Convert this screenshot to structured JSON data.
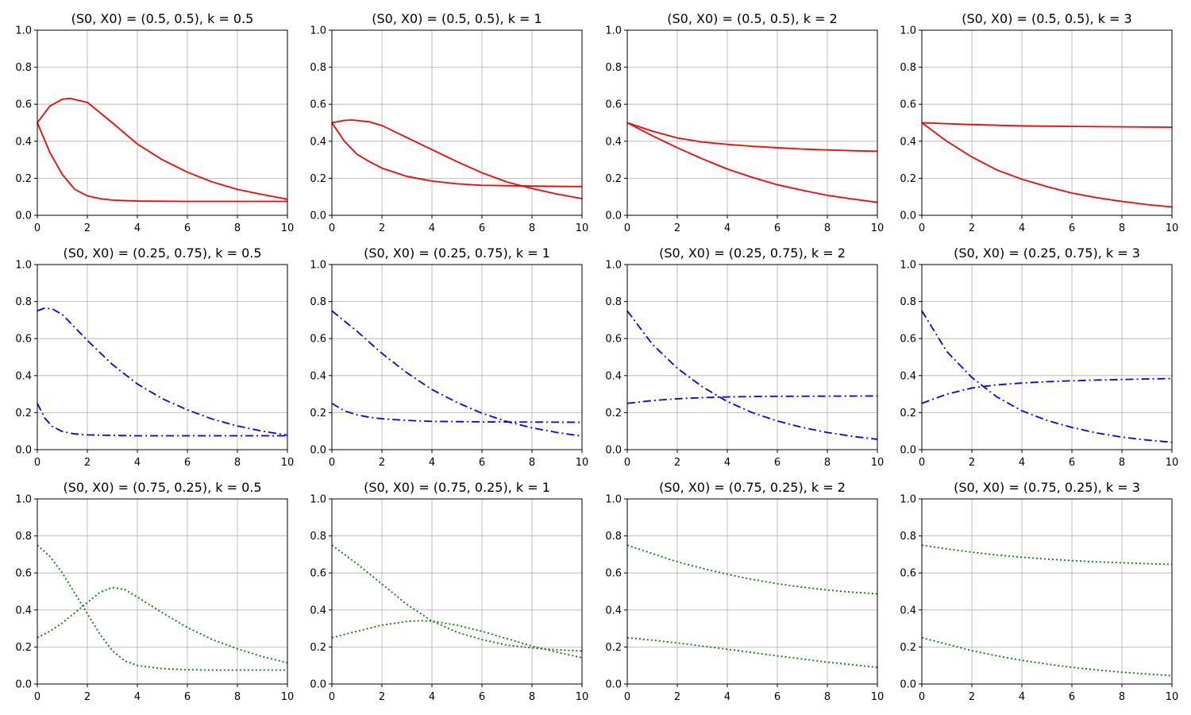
{
  "figure": {
    "layout": {
      "rows": 3,
      "cols": 4
    },
    "series_styles": {
      "solid": {
        "color": "#ff0000",
        "dash": ""
      },
      "dashdot": {
        "color": "#0000ff",
        "dash": "10,4,2,4"
      },
      "dotted": {
        "color": "#008000",
        "dash": "2,3"
      }
    }
  },
  "chart_data": [
    {
      "type": "line",
      "title": "(S0, X0) = (0.5, 0.5), k = 0.5",
      "style": "solid",
      "xlim": [
        0,
        10
      ],
      "ylim": [
        0,
        1
      ],
      "grid": true,
      "xticks": [
        0,
        2,
        4,
        6,
        8,
        10
      ],
      "yticks": [
        0.0,
        0.2,
        0.4,
        0.6,
        0.8,
        1.0
      ],
      "series": [
        {
          "x": [
            0,
            0.5,
            1,
            1.3,
            2,
            3,
            4,
            5,
            6,
            7,
            8,
            9,
            10
          ],
          "y": [
            0.5,
            0.59,
            0.627,
            0.632,
            0.61,
            0.5,
            0.385,
            0.3,
            0.233,
            0.18,
            0.14,
            0.112,
            0.087
          ]
        },
        {
          "x": [
            0,
            0.5,
            1,
            1.5,
            2,
            2.5,
            3,
            4,
            6,
            8,
            10
          ],
          "y": [
            0.5,
            0.34,
            0.22,
            0.14,
            0.105,
            0.09,
            0.082,
            0.077,
            0.075,
            0.075,
            0.075
          ]
        }
      ]
    },
    {
      "type": "line",
      "title": "(S0, X0) = (0.5, 0.5), k = 1",
      "style": "solid",
      "xlim": [
        0,
        10
      ],
      "ylim": [
        0,
        1
      ],
      "grid": true,
      "xticks": [
        0,
        2,
        4,
        6,
        8,
        10
      ],
      "yticks": [
        0.0,
        0.2,
        0.4,
        0.6,
        0.8,
        1.0
      ],
      "series": [
        {
          "x": [
            0,
            0.5,
            0.8,
            1.5,
            2,
            3,
            4,
            5,
            6,
            7,
            8,
            9,
            10
          ],
          "y": [
            0.5,
            0.513,
            0.515,
            0.505,
            0.485,
            0.42,
            0.355,
            0.29,
            0.23,
            0.18,
            0.145,
            0.115,
            0.09
          ]
        },
        {
          "x": [
            0,
            0.5,
            1,
            1.5,
            2,
            3,
            4,
            5,
            6,
            8,
            10
          ],
          "y": [
            0.5,
            0.4,
            0.33,
            0.29,
            0.255,
            0.21,
            0.185,
            0.17,
            0.162,
            0.158,
            0.155
          ]
        }
      ]
    },
    {
      "type": "line",
      "title": "(S0, X0) = (0.5, 0.5), k = 2",
      "style": "solid",
      "xlim": [
        0,
        10
      ],
      "ylim": [
        0,
        1
      ],
      "grid": true,
      "xticks": [
        0,
        2,
        4,
        6,
        8,
        10
      ],
      "yticks": [
        0.0,
        0.2,
        0.4,
        0.6,
        0.8,
        1.0
      ],
      "series": [
        {
          "x": [
            0,
            1,
            2,
            3,
            4,
            5,
            6,
            7,
            8,
            9,
            10
          ],
          "y": [
            0.5,
            0.455,
            0.418,
            0.396,
            0.383,
            0.373,
            0.365,
            0.358,
            0.353,
            0.349,
            0.346
          ]
        },
        {
          "x": [
            0,
            1,
            2,
            3,
            4,
            5,
            6,
            7,
            8,
            9,
            10
          ],
          "y": [
            0.5,
            0.43,
            0.365,
            0.305,
            0.25,
            0.205,
            0.165,
            0.135,
            0.108,
            0.088,
            0.07
          ]
        }
      ]
    },
    {
      "type": "line",
      "title": "(S0, X0) = (0.5, 0.5), k = 3",
      "style": "solid",
      "xlim": [
        0,
        10
      ],
      "ylim": [
        0,
        1
      ],
      "grid": true,
      "xticks": [
        0,
        2,
        4,
        6,
        8,
        10
      ],
      "yticks": [
        0.0,
        0.2,
        0.4,
        0.6,
        0.8,
        1.0
      ],
      "series": [
        {
          "x": [
            0,
            2,
            4,
            6,
            8,
            10
          ],
          "y": [
            0.5,
            0.49,
            0.483,
            0.48,
            0.478,
            0.476
          ]
        },
        {
          "x": [
            0,
            1,
            2,
            3,
            4,
            5,
            6,
            7,
            8,
            9,
            10
          ],
          "y": [
            0.5,
            0.4,
            0.315,
            0.245,
            0.195,
            0.155,
            0.12,
            0.095,
            0.075,
            0.058,
            0.045
          ]
        }
      ]
    },
    {
      "type": "line",
      "title": "(S0, X0) = (0.25, 0.75), k = 0.5",
      "style": "dashdot",
      "xlim": [
        0,
        10
      ],
      "ylim": [
        0,
        1
      ],
      "grid": true,
      "xticks": [
        0,
        2,
        4,
        6,
        8,
        10
      ],
      "yticks": [
        0.0,
        0.2,
        0.4,
        0.6,
        0.8,
        1.0
      ],
      "series": [
        {
          "x": [
            0,
            0.3,
            0.6,
            1,
            1.5,
            2,
            3,
            4,
            5,
            6,
            7,
            8,
            9,
            10
          ],
          "y": [
            0.75,
            0.765,
            0.76,
            0.73,
            0.66,
            0.59,
            0.46,
            0.355,
            0.275,
            0.215,
            0.165,
            0.128,
            0.1,
            0.078
          ]
        },
        {
          "x": [
            0,
            0.3,
            0.6,
            1,
            1.5,
            2,
            3,
            4,
            6,
            8,
            10
          ],
          "y": [
            0.25,
            0.17,
            0.125,
            0.098,
            0.085,
            0.08,
            0.077,
            0.075,
            0.075,
            0.075,
            0.075
          ]
        }
      ]
    },
    {
      "type": "line",
      "title": "(S0, X0) = (0.25, 0.75), k = 1",
      "style": "dashdot",
      "xlim": [
        0,
        10
      ],
      "ylim": [
        0,
        1
      ],
      "grid": true,
      "xticks": [
        0,
        2,
        4,
        6,
        8,
        10
      ],
      "yticks": [
        0.0,
        0.2,
        0.4,
        0.6,
        0.8,
        1.0
      ],
      "series": [
        {
          "x": [
            0,
            1,
            2,
            3,
            4,
            5,
            6,
            7,
            8,
            9,
            10
          ],
          "y": [
            0.75,
            0.64,
            0.52,
            0.415,
            0.325,
            0.255,
            0.197,
            0.152,
            0.118,
            0.093,
            0.073
          ]
        },
        {
          "x": [
            0,
            0.5,
            1,
            1.5,
            2,
            3,
            4,
            6,
            8,
            10
          ],
          "y": [
            0.25,
            0.21,
            0.188,
            0.175,
            0.167,
            0.158,
            0.153,
            0.15,
            0.149,
            0.148
          ]
        }
      ]
    },
    {
      "type": "line",
      "title": "(S0, X0) = (0.25, 0.75), k = 2",
      "style": "dashdot",
      "xlim": [
        0,
        10
      ],
      "ylim": [
        0,
        1
      ],
      "grid": true,
      "xticks": [
        0,
        2,
        4,
        6,
        8,
        10
      ],
      "yticks": [
        0.0,
        0.2,
        0.4,
        0.6,
        0.8,
        1.0
      ],
      "series": [
        {
          "x": [
            0,
            1,
            2,
            3,
            4,
            5,
            6,
            7,
            8,
            9,
            10
          ],
          "y": [
            0.75,
            0.57,
            0.44,
            0.34,
            0.26,
            0.2,
            0.155,
            0.12,
            0.093,
            0.072,
            0.056
          ]
        },
        {
          "x": [
            0,
            1,
            2,
            3,
            4,
            5,
            6,
            8,
            10
          ],
          "y": [
            0.25,
            0.265,
            0.275,
            0.281,
            0.285,
            0.287,
            0.288,
            0.289,
            0.29
          ]
        }
      ]
    },
    {
      "type": "line",
      "title": "(S0, X0) = (0.25, 0.75), k = 3",
      "style": "dashdot",
      "xlim": [
        0,
        10
      ],
      "ylim": [
        0,
        1
      ],
      "grid": true,
      "xticks": [
        0,
        2,
        4,
        6,
        8,
        10
      ],
      "yticks": [
        0.0,
        0.2,
        0.4,
        0.6,
        0.8,
        1.0
      ],
      "series": [
        {
          "x": [
            0,
            1,
            2,
            3,
            4,
            5,
            6,
            7,
            8,
            9,
            10
          ],
          "y": [
            0.75,
            0.53,
            0.39,
            0.285,
            0.21,
            0.158,
            0.12,
            0.09,
            0.068,
            0.052,
            0.04
          ]
        },
        {
          "x": [
            0,
            1,
            2,
            3,
            4,
            5,
            6,
            7,
            8,
            9,
            10
          ],
          "y": [
            0.25,
            0.3,
            0.333,
            0.35,
            0.36,
            0.367,
            0.372,
            0.376,
            0.379,
            0.382,
            0.384
          ]
        }
      ]
    },
    {
      "type": "line",
      "title": "(S0, X0) = (0.75, 0.25), k = 0.5",
      "style": "dotted",
      "xlim": [
        0,
        10
      ],
      "ylim": [
        0,
        1
      ],
      "grid": true,
      "xticks": [
        0,
        2,
        4,
        6,
        8,
        10
      ],
      "yticks": [
        0.0,
        0.2,
        0.4,
        0.6,
        0.8,
        1.0
      ],
      "series": [
        {
          "x": [
            0,
            0.5,
            1,
            1.5,
            2,
            2.5,
            3,
            3.5,
            4,
            5,
            6,
            7,
            8,
            10
          ],
          "y": [
            0.75,
            0.69,
            0.6,
            0.49,
            0.38,
            0.27,
            0.18,
            0.125,
            0.1,
            0.083,
            0.077,
            0.075,
            0.075,
            0.075
          ]
        },
        {
          "x": [
            0,
            0.5,
            1,
            1.5,
            2,
            2.5,
            3,
            3.5,
            4,
            5,
            6,
            7,
            8,
            9,
            10
          ],
          "y": [
            0.25,
            0.285,
            0.33,
            0.385,
            0.44,
            0.495,
            0.522,
            0.51,
            0.47,
            0.385,
            0.305,
            0.24,
            0.19,
            0.148,
            0.115
          ]
        }
      ]
    },
    {
      "type": "line",
      "title": "(S0, X0) = (0.75, 0.25), k = 1",
      "style": "dotted",
      "xlim": [
        0,
        10
      ],
      "ylim": [
        0,
        1
      ],
      "grid": true,
      "xticks": [
        0,
        2,
        4,
        6,
        8,
        10
      ],
      "yticks": [
        0.0,
        0.2,
        0.4,
        0.6,
        0.8,
        1.0
      ],
      "series": [
        {
          "x": [
            0,
            1,
            2,
            3,
            4,
            5,
            6,
            7,
            8,
            9,
            10
          ],
          "y": [
            0.75,
            0.65,
            0.54,
            0.43,
            0.34,
            0.28,
            0.24,
            0.21,
            0.195,
            0.185,
            0.178
          ]
        },
        {
          "x": [
            0,
            1,
            2,
            3,
            3.5,
            4,
            5,
            6,
            7,
            8,
            9,
            10
          ],
          "y": [
            0.25,
            0.285,
            0.318,
            0.338,
            0.342,
            0.34,
            0.318,
            0.285,
            0.245,
            0.205,
            0.172,
            0.142
          ]
        }
      ]
    },
    {
      "type": "line",
      "title": "(S0, X0) = (0.75, 0.25), k = 2",
      "style": "dotted",
      "xlim": [
        0,
        10
      ],
      "ylim": [
        0,
        1
      ],
      "grid": true,
      "xticks": [
        0,
        2,
        4,
        6,
        8,
        10
      ],
      "yticks": [
        0.0,
        0.2,
        0.4,
        0.6,
        0.8,
        1.0
      ],
      "series": [
        {
          "x": [
            0,
            1,
            2,
            3,
            4,
            5,
            6,
            7,
            8,
            9,
            10
          ],
          "y": [
            0.75,
            0.705,
            0.66,
            0.625,
            0.593,
            0.565,
            0.542,
            0.523,
            0.508,
            0.496,
            0.487
          ]
        },
        {
          "x": [
            0,
            1,
            2,
            3,
            4,
            5,
            6,
            7,
            8,
            9,
            10
          ],
          "y": [
            0.25,
            0.237,
            0.222,
            0.205,
            0.188,
            0.17,
            0.152,
            0.135,
            0.118,
            0.104,
            0.09
          ]
        }
      ]
    },
    {
      "type": "line",
      "title": "(S0, X0) = (0.75, 0.25), k = 3",
      "style": "dotted",
      "xlim": [
        0,
        10
      ],
      "ylim": [
        0,
        1
      ],
      "grid": true,
      "xticks": [
        0,
        2,
        4,
        6,
        8,
        10
      ],
      "yticks": [
        0.0,
        0.2,
        0.4,
        0.6,
        0.8,
        1.0
      ],
      "series": [
        {
          "x": [
            0,
            1,
            2,
            3,
            4,
            5,
            6,
            7,
            8,
            9,
            10
          ],
          "y": [
            0.75,
            0.73,
            0.712,
            0.697,
            0.685,
            0.675,
            0.667,
            0.66,
            0.655,
            0.65,
            0.646
          ]
        },
        {
          "x": [
            0,
            1,
            2,
            3,
            4,
            5,
            6,
            7,
            8,
            9,
            10
          ],
          "y": [
            0.25,
            0.215,
            0.18,
            0.152,
            0.128,
            0.108,
            0.09,
            0.076,
            0.064,
            0.054,
            0.045
          ]
        }
      ]
    }
  ]
}
